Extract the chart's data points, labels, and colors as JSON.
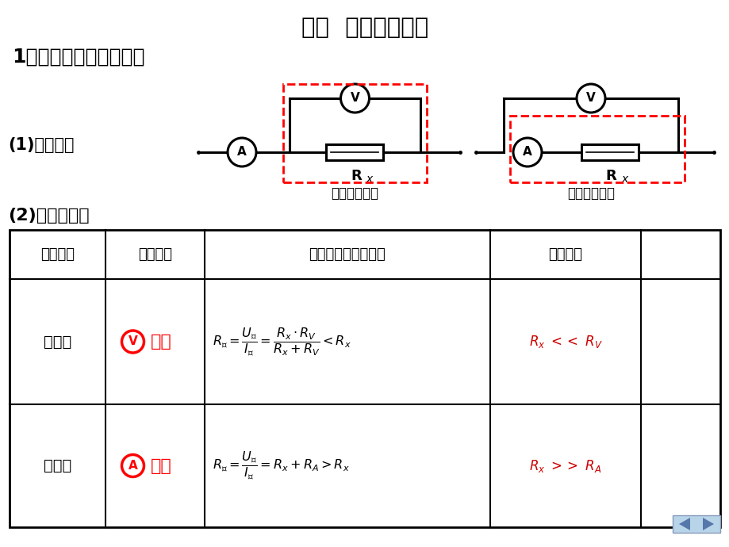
{
  "title": "二．  基本测量电路",
  "subtitle1": "1．电流表内外接法选取",
  "label_12": "(1)基本电路",
  "label_22": "(2)电路的对比",
  "label_ext": "电流表外接法",
  "label_int": "电流表内接法",
  "bg_color": "#FFFFFF",
  "table_header": [
    "连接方式",
    "误差分析",
    "测量値与真实値关系",
    "适用条件"
  ],
  "row1_col1": "外接法",
  "row1_col2_letter": "V",
  "row1_col2_text": "分流",
  "row2_col1": "内接法",
  "row2_col2_letter": "A",
  "row2_col2_text": "分压",
  "nav_bg": "#B8D4E8",
  "nav_dark": "#5577AA"
}
